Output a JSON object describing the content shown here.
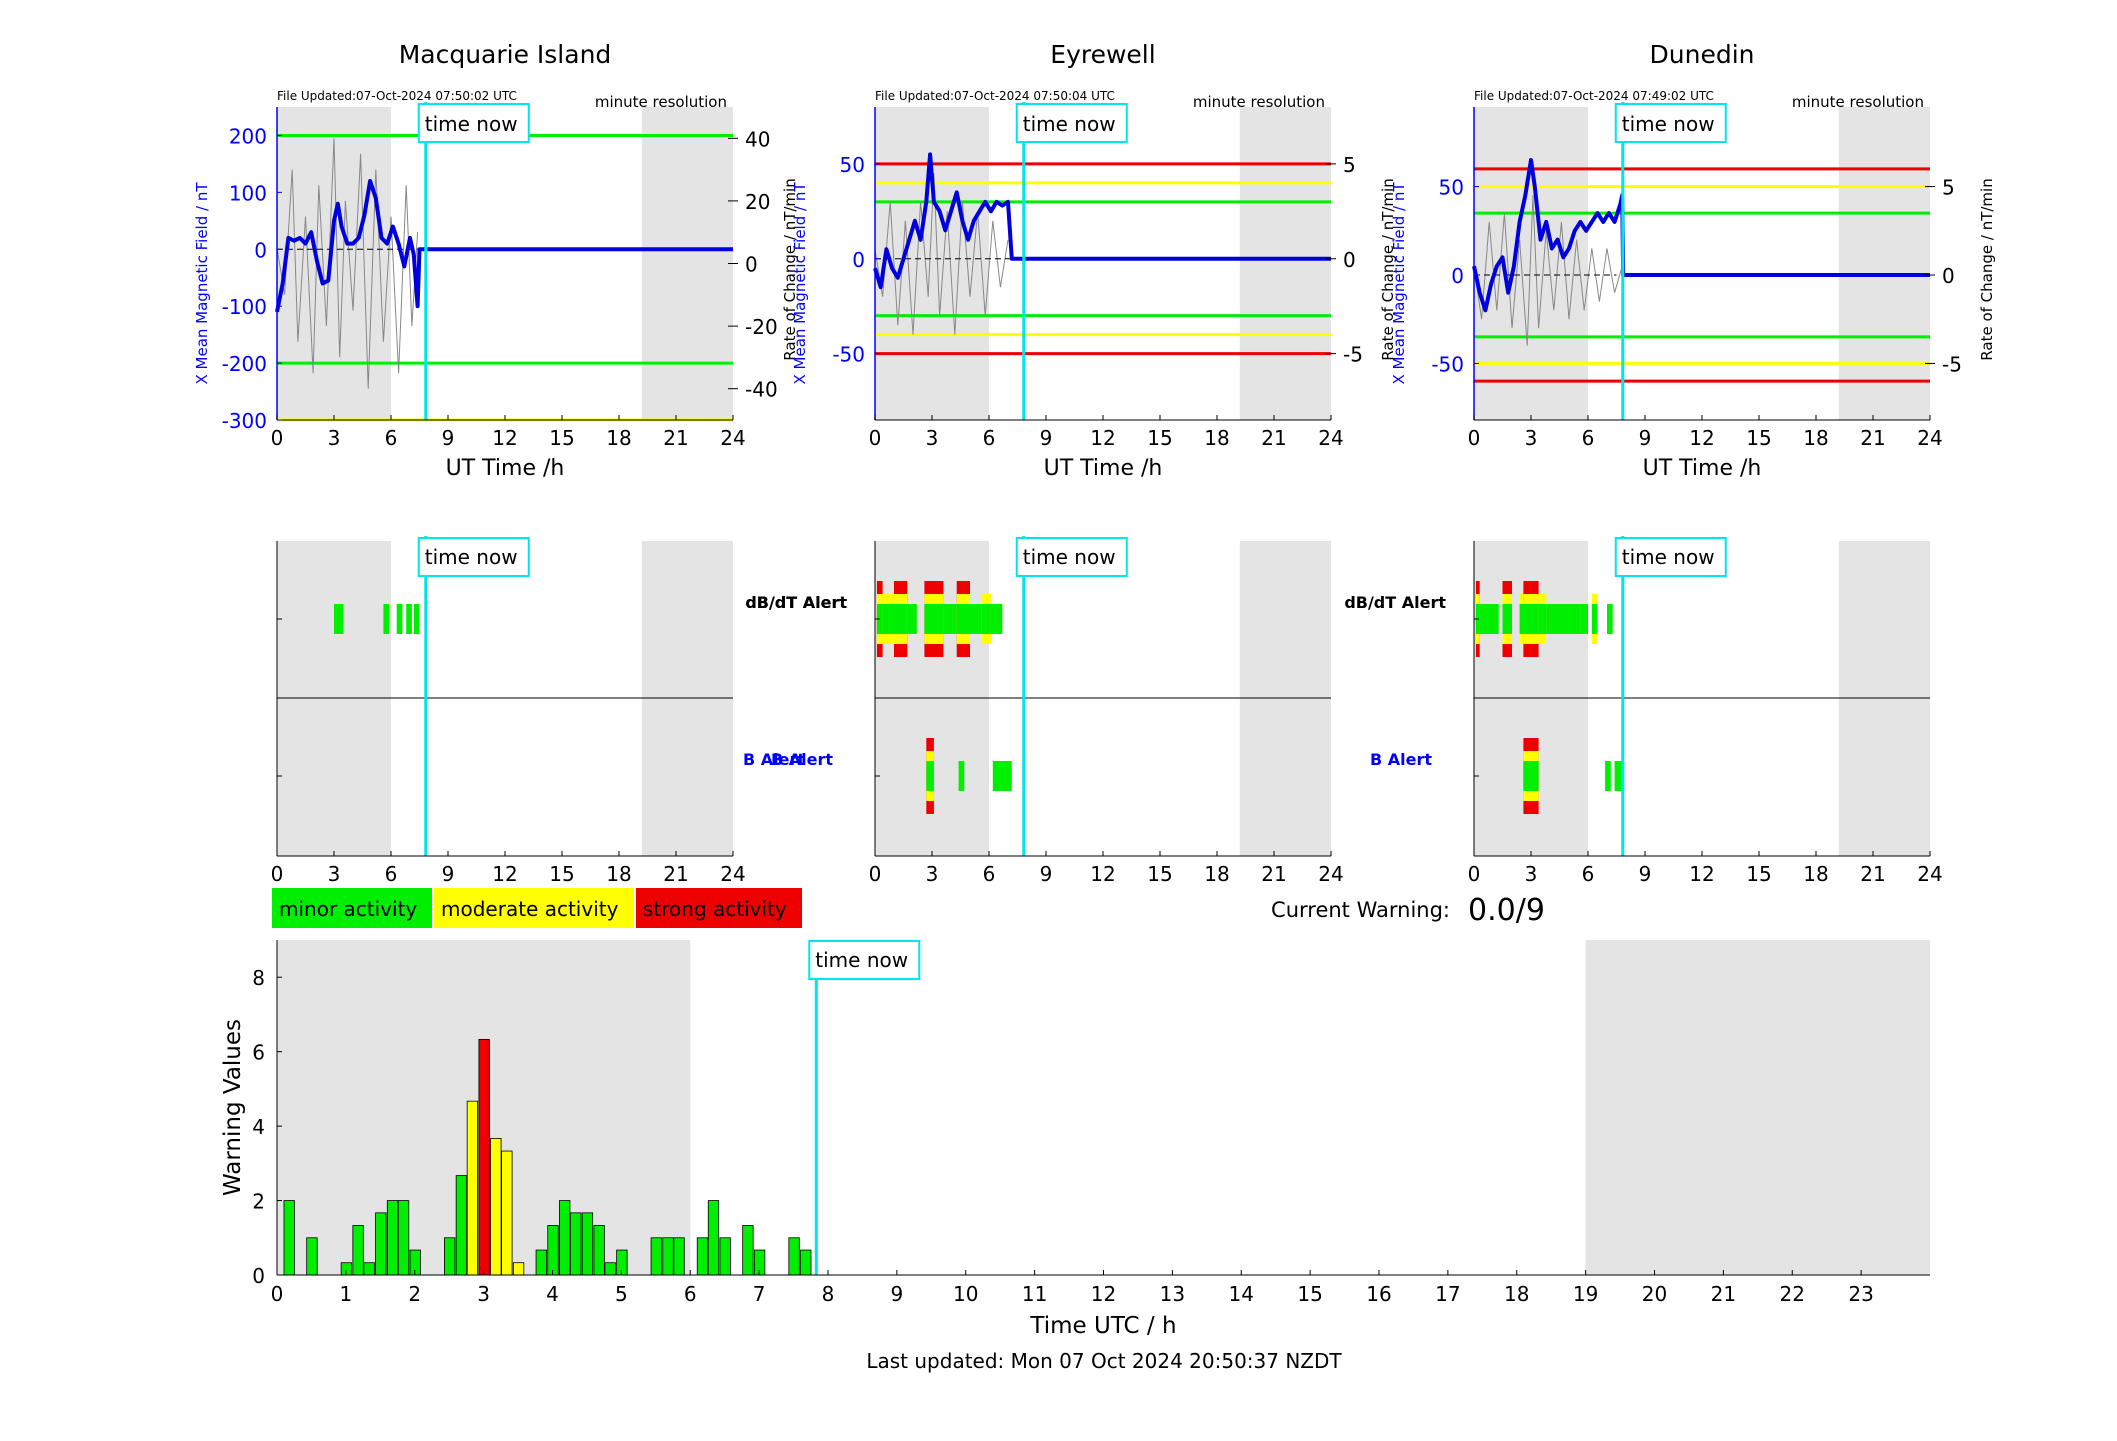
{
  "panels": [
    {
      "station": "Macquarie Island",
      "file_updated": "File Updated:07-Oct-2024 07:50:02 UTC",
      "resolution": "minute resolution",
      "time_now_label": "time now",
      "time_now_h": 7.83,
      "ylim_left": [
        -300,
        250
      ],
      "yticks_left": [
        -300,
        -200,
        -100,
        0,
        100,
        200
      ],
      "ylim_right": [
        -50,
        50
      ],
      "yticks_right": [
        -40,
        -20,
        0,
        20,
        40
      ],
      "threshold_lines": [
        {
          "value": 200,
          "color": "#00ee00"
        },
        {
          "value": -200,
          "color": "#00ee00"
        },
        {
          "value": -300,
          "color": "#ffff00"
        }
      ],
      "night_shading_h": [
        [
          0,
          6
        ],
        [
          19.2,
          24
        ]
      ],
      "mean_field": [
        [
          0,
          -110
        ],
        [
          0.3,
          -60
        ],
        [
          0.6,
          20
        ],
        [
          0.9,
          15
        ],
        [
          1.2,
          20
        ],
        [
          1.5,
          10
        ],
        [
          1.8,
          30
        ],
        [
          2.1,
          -20
        ],
        [
          2.4,
          -60
        ],
        [
          2.7,
          -55
        ],
        [
          3,
          50
        ],
        [
          3.2,
          80
        ],
        [
          3.4,
          40
        ],
        [
          3.7,
          10
        ],
        [
          4,
          10
        ],
        [
          4.3,
          20
        ],
        [
          4.6,
          60
        ],
        [
          4.9,
          120
        ],
        [
          5.2,
          90
        ],
        [
          5.5,
          20
        ],
        [
          5.8,
          10
        ],
        [
          6.1,
          40
        ],
        [
          6.4,
          10
        ],
        [
          6.7,
          -30
        ],
        [
          7,
          20
        ],
        [
          7.2,
          -10
        ],
        [
          7.4,
          -100
        ],
        [
          7.5,
          0
        ],
        [
          24,
          0
        ]
      ],
      "dbdt_points": [
        [
          0,
          5
        ],
        [
          0.4,
          -10
        ],
        [
          0.8,
          30
        ],
        [
          1.1,
          -25
        ],
        [
          1.5,
          15
        ],
        [
          1.9,
          -35
        ],
        [
          2.2,
          25
        ],
        [
          2.6,
          -20
        ],
        [
          3,
          40
        ],
        [
          3.3,
          -30
        ],
        [
          3.6,
          20
        ],
        [
          4,
          -15
        ],
        [
          4.4,
          35
        ],
        [
          4.8,
          -40
        ],
        [
          5.2,
          30
        ],
        [
          5.6,
          -25
        ],
        [
          6,
          15
        ],
        [
          6.4,
          -35
        ],
        [
          6.8,
          25
        ],
        [
          7.1,
          -20
        ],
        [
          7.4,
          10
        ]
      ],
      "dbdt_alert": [
        {
          "start": 3.0,
          "end": 3.5,
          "levels": [
            "minor"
          ]
        },
        {
          "start": 5.6,
          "end": 5.9,
          "levels": [
            "minor"
          ]
        },
        {
          "start": 6.3,
          "end": 6.6,
          "levels": [
            "minor"
          ]
        },
        {
          "start": 6.8,
          "end": 7.1,
          "levels": [
            "minor"
          ]
        },
        {
          "start": 7.2,
          "end": 7.5,
          "levels": [
            "minor"
          ]
        }
      ],
      "b_alert": []
    },
    {
      "station": "Eyrewell",
      "file_updated": "File Updated:07-Oct-2024 07:50:04 UTC",
      "resolution": "minute resolution",
      "time_now_label": "time now",
      "time_now_h": 7.83,
      "ylim_left": [
        -85,
        80
      ],
      "yticks_left": [
        -50,
        0,
        50
      ],
      "ylim_right": [
        -8.5,
        8
      ],
      "yticks_right": [
        -5,
        0,
        5
      ],
      "threshold_lines": [
        {
          "value": 50,
          "color": "#ee0000"
        },
        {
          "value": 40,
          "color": "#ffff00"
        },
        {
          "value": 30,
          "color": "#00ee00"
        },
        {
          "value": -30,
          "color": "#00ee00"
        },
        {
          "value": -40,
          "color": "#ffff00"
        },
        {
          "value": -50,
          "color": "#ee0000"
        }
      ],
      "night_shading_h": [
        [
          0,
          6
        ],
        [
          19.2,
          24
        ]
      ],
      "mean_field": [
        [
          0,
          -5
        ],
        [
          0.3,
          -15
        ],
        [
          0.6,
          5
        ],
        [
          0.9,
          -5
        ],
        [
          1.2,
          -10
        ],
        [
          1.5,
          0
        ],
        [
          1.8,
          10
        ],
        [
          2.1,
          20
        ],
        [
          2.4,
          10
        ],
        [
          2.7,
          30
        ],
        [
          2.9,
          55
        ],
        [
          3.1,
          30
        ],
        [
          3.4,
          25
        ],
        [
          3.7,
          15
        ],
        [
          4,
          25
        ],
        [
          4.3,
          35
        ],
        [
          4.6,
          20
        ],
        [
          4.9,
          10
        ],
        [
          5.2,
          20
        ],
        [
          5.5,
          25
        ],
        [
          5.8,
          30
        ],
        [
          6.1,
          25
        ],
        [
          6.4,
          30
        ],
        [
          6.7,
          28
        ],
        [
          7,
          30
        ],
        [
          7.2,
          0
        ],
        [
          24,
          0
        ]
      ],
      "dbdt_points": [
        [
          0,
          0.5
        ],
        [
          0.4,
          -2
        ],
        [
          0.8,
          3
        ],
        [
          1.2,
          -3.5
        ],
        [
          1.6,
          2
        ],
        [
          2,
          -4
        ],
        [
          2.4,
          3
        ],
        [
          2.8,
          -2
        ],
        [
          3.1,
          4.5
        ],
        [
          3.4,
          -3
        ],
        [
          3.8,
          2.5
        ],
        [
          4.2,
          -4
        ],
        [
          4.6,
          3
        ],
        [
          5,
          -2
        ],
        [
          5.4,
          2.5
        ],
        [
          5.8,
          -3
        ],
        [
          6.2,
          2
        ],
        [
          6.6,
          -1.5
        ],
        [
          7,
          1
        ]
      ],
      "dbdt_alert": [
        {
          "start": 0.1,
          "end": 0.4,
          "levels": [
            "strong"
          ]
        },
        {
          "start": 0.4,
          "end": 1.0,
          "levels": [
            "moderate"
          ]
        },
        {
          "start": 1.0,
          "end": 1.7,
          "levels": [
            "strong"
          ]
        },
        {
          "start": 1.7,
          "end": 2.2,
          "levels": [
            "minor"
          ]
        },
        {
          "start": 2.6,
          "end": 3.6,
          "levels": [
            "strong"
          ]
        },
        {
          "start": 3.6,
          "end": 4.3,
          "levels": [
            "minor"
          ]
        },
        {
          "start": 4.3,
          "end": 5.0,
          "levels": [
            "strong"
          ]
        },
        {
          "start": 5.0,
          "end": 5.6,
          "levels": [
            "minor"
          ]
        },
        {
          "start": 5.6,
          "end": 6.1,
          "levels": [
            "moderate"
          ]
        },
        {
          "start": 6.1,
          "end": 6.7,
          "levels": [
            "minor"
          ]
        }
      ],
      "b_alert": [
        {
          "start": 2.7,
          "end": 3.1,
          "levels": [
            "strong"
          ]
        },
        {
          "start": 4.4,
          "end": 4.7,
          "levels": [
            "minor"
          ]
        },
        {
          "start": 6.2,
          "end": 7.2,
          "levels": [
            "minor"
          ]
        }
      ]
    },
    {
      "station": "Dunedin",
      "file_updated": "File Updated:07-Oct-2024 07:49:02 UTC",
      "resolution": "minute resolution",
      "time_now_label": "time now",
      "time_now_h": 7.83,
      "ylim_left": [
        -82,
        95
      ],
      "yticks_left": [
        -50,
        0,
        50
      ],
      "ylim_right": [
        -8.2,
        9.5
      ],
      "yticks_right": [
        -5,
        0,
        5
      ],
      "threshold_lines": [
        {
          "value": 60,
          "color": "#ee0000"
        },
        {
          "value": 50,
          "color": "#ffff00"
        },
        {
          "value": 35,
          "color": "#00ee00"
        },
        {
          "value": -35,
          "color": "#00ee00"
        },
        {
          "value": -50,
          "color": "#ffff00"
        },
        {
          "value": -60,
          "color": "#ee0000"
        }
      ],
      "night_shading_h": [
        [
          0,
          6
        ],
        [
          19.2,
          24
        ]
      ],
      "mean_field": [
        [
          0,
          5
        ],
        [
          0.3,
          -10
        ],
        [
          0.6,
          -20
        ],
        [
          0.9,
          -5
        ],
        [
          1.2,
          5
        ],
        [
          1.5,
          10
        ],
        [
          1.8,
          -10
        ],
        [
          2.1,
          5
        ],
        [
          2.4,
          30
        ],
        [
          2.7,
          45
        ],
        [
          3,
          65
        ],
        [
          3.2,
          50
        ],
        [
          3.5,
          20
        ],
        [
          3.8,
          30
        ],
        [
          4.1,
          15
        ],
        [
          4.4,
          20
        ],
        [
          4.7,
          10
        ],
        [
          5,
          15
        ],
        [
          5.3,
          25
        ],
        [
          5.6,
          30
        ],
        [
          5.9,
          25
        ],
        [
          6.2,
          30
        ],
        [
          6.5,
          35
        ],
        [
          6.8,
          30
        ],
        [
          7.1,
          35
        ],
        [
          7.4,
          30
        ],
        [
          7.7,
          40
        ],
        [
          7.8,
          45
        ],
        [
          7.85,
          0
        ],
        [
          24,
          0
        ]
      ],
      "dbdt_points": [
        [
          0,
          0.5
        ],
        [
          0.4,
          -2.5
        ],
        [
          0.8,
          3
        ],
        [
          1.2,
          -2
        ],
        [
          1.6,
          3.5
        ],
        [
          2,
          -3
        ],
        [
          2.4,
          2
        ],
        [
          2.8,
          -4
        ],
        [
          3.1,
          4.5
        ],
        [
          3.4,
          -3
        ],
        [
          3.8,
          2.5
        ],
        [
          4.2,
          -2
        ],
        [
          4.6,
          3
        ],
        [
          5,
          -2.5
        ],
        [
          5.4,
          2
        ],
        [
          5.8,
          -2
        ],
        [
          6.2,
          1.5
        ],
        [
          6.6,
          -1.5
        ],
        [
          7,
          1.5
        ],
        [
          7.4,
          -1
        ],
        [
          7.8,
          0.5
        ]
      ],
      "dbdt_alert": [
        {
          "start": 0.1,
          "end": 0.3,
          "levels": [
            "strong"
          ]
        },
        {
          "start": 0.3,
          "end": 1.3,
          "levels": [
            "minor"
          ]
        },
        {
          "start": 1.5,
          "end": 2.0,
          "levels": [
            "strong"
          ]
        },
        {
          "start": 2.4,
          "end": 2.6,
          "levels": [
            "moderate"
          ]
        },
        {
          "start": 2.6,
          "end": 3.4,
          "levels": [
            "strong"
          ]
        },
        {
          "start": 3.4,
          "end": 3.8,
          "levels": [
            "moderate"
          ]
        },
        {
          "start": 3.8,
          "end": 5.6,
          "levels": [
            "minor"
          ]
        },
        {
          "start": 5.6,
          "end": 6.0,
          "levels": [
            "minor"
          ]
        },
        {
          "start": 6.2,
          "end": 6.5,
          "levels": [
            "moderate"
          ]
        },
        {
          "start": 7.0,
          "end": 7.3,
          "levels": [
            "minor"
          ]
        }
      ],
      "b_alert": [
        {
          "start": 2.6,
          "end": 3.4,
          "levels": [
            "strong"
          ]
        },
        {
          "start": 6.9,
          "end": 7.2,
          "levels": [
            "minor"
          ]
        },
        {
          "start": 7.4,
          "end": 7.9,
          "levels": [
            "minor"
          ]
        }
      ]
    }
  ],
  "field_plot": {
    "xticks": [
      0,
      3,
      6,
      9,
      12,
      15,
      18,
      21,
      24
    ],
    "xlabel": "UT Time /h",
    "ylabel_left": "X Mean Magnetic Field / nT",
    "ylabel_right": "Rate of Change / nT/min",
    "left_axis_color": "#0000ff"
  },
  "alert_plot": {
    "dbdt_label": "dB/dT Alert",
    "b_label": "B Alert",
    "xticks": [
      0,
      3,
      6,
      9,
      12,
      15,
      18,
      21,
      24
    ]
  },
  "legend": [
    {
      "label": "minor activity",
      "color": "#00ee00"
    },
    {
      "label": "moderate activity",
      "color": "#ffff00"
    },
    {
      "label": "strong activity",
      "color": "#ee0000"
    }
  ],
  "current_warning": {
    "label": "Current Warning:",
    "value": "0.0/9"
  },
  "chart_data": {
    "type": "bar",
    "xlabel": "Time UTC / h",
    "ylabel": "Warning Values",
    "xlim": [
      0,
      24
    ],
    "ylim": [
      0,
      9
    ],
    "xticks": [
      0,
      1,
      2,
      3,
      4,
      5,
      6,
      7,
      8,
      9,
      10,
      11,
      12,
      13,
      14,
      15,
      16,
      17,
      18,
      19,
      20,
      21,
      22,
      23
    ],
    "yticks": [
      0,
      2,
      4,
      6,
      8
    ],
    "time_now_label": "time now",
    "time_now_h": 7.83,
    "night_shading_h": [
      [
        0,
        6
      ],
      [
        19,
        24
      ]
    ],
    "bin_width_h": 0.1667,
    "series": [
      {
        "t": 0.17,
        "value": 2.0,
        "level": "minor"
      },
      {
        "t": 0.5,
        "value": 1.0,
        "level": "minor"
      },
      {
        "t": 0.83,
        "value": 0,
        "level": "minor"
      },
      {
        "t": 1.0,
        "value": 0.33,
        "level": "minor"
      },
      {
        "t": 1.17,
        "value": 1.33,
        "level": "minor"
      },
      {
        "t": 1.33,
        "value": 0.33,
        "level": "minor"
      },
      {
        "t": 1.5,
        "value": 1.67,
        "level": "minor"
      },
      {
        "t": 1.67,
        "value": 2.0,
        "level": "minor"
      },
      {
        "t": 1.83,
        "value": 2.0,
        "level": "minor"
      },
      {
        "t": 2.0,
        "value": 0.67,
        "level": "minor"
      },
      {
        "t": 2.5,
        "value": 1.0,
        "level": "minor"
      },
      {
        "t": 2.67,
        "value": 2.67,
        "level": "minor"
      },
      {
        "t": 2.83,
        "value": 4.67,
        "level": "moderate"
      },
      {
        "t": 3.0,
        "value": 6.33,
        "level": "strong"
      },
      {
        "t": 3.17,
        "value": 3.67,
        "level": "moderate"
      },
      {
        "t": 3.33,
        "value": 3.33,
        "level": "moderate"
      },
      {
        "t": 3.5,
        "value": 0.33,
        "level": "moderate"
      },
      {
        "t": 3.83,
        "value": 0.67,
        "level": "minor"
      },
      {
        "t": 4.0,
        "value": 1.33,
        "level": "minor"
      },
      {
        "t": 4.17,
        "value": 2.0,
        "level": "minor"
      },
      {
        "t": 4.33,
        "value": 1.67,
        "level": "minor"
      },
      {
        "t": 4.5,
        "value": 1.67,
        "level": "minor"
      },
      {
        "t": 4.67,
        "value": 1.33,
        "level": "minor"
      },
      {
        "t": 4.83,
        "value": 0.33,
        "level": "minor"
      },
      {
        "t": 5.0,
        "value": 0.67,
        "level": "minor"
      },
      {
        "t": 5.5,
        "value": 1.0,
        "level": "minor"
      },
      {
        "t": 5.67,
        "value": 1.0,
        "level": "minor"
      },
      {
        "t": 5.83,
        "value": 1.0,
        "level": "minor"
      },
      {
        "t": 6.17,
        "value": 1.0,
        "level": "minor"
      },
      {
        "t": 6.33,
        "value": 2.0,
        "level": "minor"
      },
      {
        "t": 6.5,
        "value": 1.0,
        "level": "minor"
      },
      {
        "t": 6.83,
        "value": 1.33,
        "level": "minor"
      },
      {
        "t": 7.0,
        "value": 0.67,
        "level": "minor"
      },
      {
        "t": 7.5,
        "value": 1.0,
        "level": "minor"
      },
      {
        "t": 7.67,
        "value": 0.67,
        "level": "minor"
      }
    ]
  },
  "footer": {
    "last_updated": "Last updated: Mon 07 Oct 2024 20:50:37 NZDT"
  },
  "colors": {
    "minor": "#00ee00",
    "moderate": "#ffff00",
    "strong": "#ee0000",
    "time_now": "#00e5ee",
    "night": "#e4e4e4",
    "mean_line": "#0000dd"
  }
}
